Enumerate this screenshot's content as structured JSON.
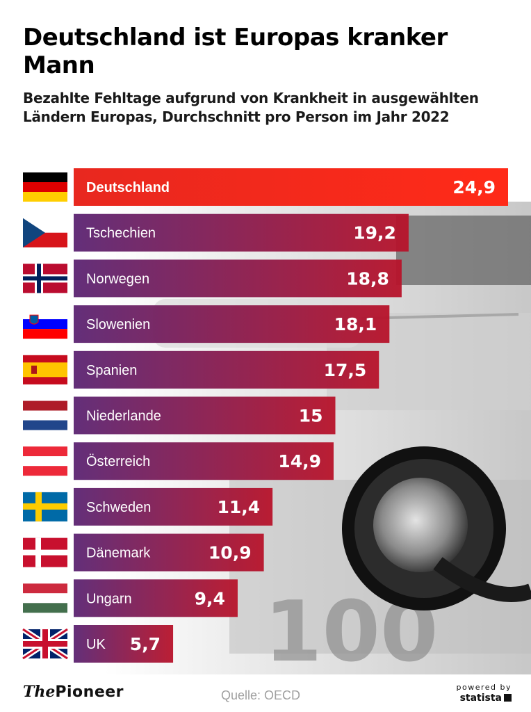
{
  "header": {
    "title": "Deutschland ist Europas kranker Mann",
    "subtitle": "Bezahlte Fehltage aufgrund von Krankheit in ausgewählten Ländern Europas, Durchschnitt pro Person im Jahr 2022"
  },
  "footer": {
    "brand_the": "The",
    "brand_name": "Pioneer",
    "source": "Quelle: OECD",
    "powered_by": "powered by",
    "statista": "statista"
  },
  "colors": {
    "highlight_start": "#e8281f",
    "highlight_end": "#ff2a18",
    "bar_start": "#5b2472",
    "bar_end": "#b8132a"
  },
  "chart_data": {
    "type": "bar",
    "orientation": "horizontal",
    "title": "Deutschland ist Europas kranker Mann",
    "subtitle": "Bezahlte Fehltage aufgrund von Krankheit in ausgewählten Ländern Europas, Durchschnitt pro Person im Jahr 2022",
    "categories": [
      "Deutschland",
      "Tschechien",
      "Norwegen",
      "Slowenien",
      "Spanien",
      "Niederlande",
      "Österreich",
      "Schweden",
      "Dänemark",
      "Ungarn",
      "UK"
    ],
    "values": [
      24.9,
      19.2,
      18.8,
      18.1,
      17.5,
      15,
      14.9,
      11.4,
      10.9,
      9.4,
      5.7
    ],
    "value_labels": [
      "24,9",
      "19,2",
      "18,8",
      "18,1",
      "17,5",
      "15",
      "14,9",
      "11,4",
      "10,9",
      "9,4",
      "5,7"
    ],
    "flags": [
      "germany-flag",
      "czech-flag",
      "norway-flag",
      "slovenia-flag",
      "spain-flag",
      "netherlands-flag",
      "austria-flag",
      "sweden-flag",
      "denmark-flag",
      "hungary-flag",
      "uk-flag"
    ],
    "highlight": "Deutschland",
    "xlim": [
      0,
      24.9
    ],
    "grid": false,
    "legend": false
  }
}
